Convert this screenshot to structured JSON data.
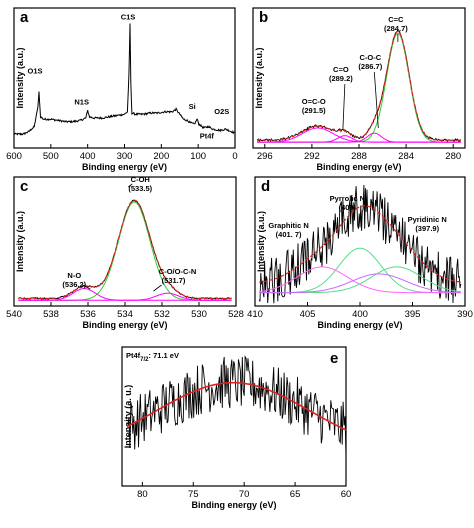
{
  "chart_data": [
    {
      "id": "a",
      "type": "line",
      "panel_label": "a",
      "xlabel": "Binding energy (eV)",
      "ylabel": "Intensity (a.u.)",
      "xlim": [
        600,
        0
      ],
      "xticks": [
        "600",
        "500",
        "400",
        "300",
        "200",
        "100",
        "0"
      ],
      "tick_values": [
        600,
        500,
        400,
        300,
        200,
        100,
        0
      ],
      "annotations": [
        {
          "text": "C1S",
          "x": 285,
          "y": 0.97
        },
        {
          "text": "O1S",
          "x": 532,
          "y": 0.52
        },
        {
          "text": "N1S",
          "x": 400,
          "y": 0.27
        },
        {
          "text": "Si",
          "x": 100,
          "y": 0.2
        },
        {
          "text": "Pt4f",
          "x": 71,
          "y": 0.14
        },
        {
          "text": "O2S",
          "x": 25,
          "y": 0.16
        }
      ],
      "series": [
        {
          "values": [
            [
              600,
              0.08
            ],
            [
              575,
              0.08
            ],
            [
              560,
              0.1
            ],
            [
              545,
              0.14
            ],
            [
              535,
              0.3
            ],
            [
              532,
              0.42
            ],
            [
              528,
              0.22
            ],
            [
              520,
              0.2
            ],
            [
              500,
              0.2
            ],
            [
              480,
              0.19
            ],
            [
              460,
              0.18
            ],
            [
              440,
              0.18
            ],
            [
              420,
              0.19
            ],
            [
              405,
              0.21
            ],
            [
              400,
              0.27
            ],
            [
              395,
              0.22
            ],
            [
              385,
              0.21
            ],
            [
              360,
              0.21
            ],
            [
              340,
              0.22
            ],
            [
              320,
              0.23
            ],
            [
              300,
              0.24
            ],
            [
              292,
              0.26
            ],
            [
              288,
              0.55
            ],
            [
              285,
              0.97
            ],
            [
              283,
              0.5
            ],
            [
              280,
              0.25
            ],
            [
              270,
              0.24
            ],
            [
              250,
              0.24
            ],
            [
              230,
              0.25
            ],
            [
              210,
              0.25
            ],
            [
              190,
              0.26
            ],
            [
              170,
              0.26
            ],
            [
              160,
              0.28
            ],
            [
              150,
              0.24
            ],
            [
              140,
              0.2
            ],
            [
              130,
              0.19
            ],
            [
              120,
              0.17
            ],
            [
              110,
              0.16
            ],
            [
              103,
              0.2
            ],
            [
              98,
              0.16
            ],
            [
              85,
              0.13
            ],
            [
              72,
              0.14
            ],
            [
              60,
              0.12
            ],
            [
              40,
              0.11
            ],
            [
              25,
              0.12
            ],
            [
              10,
              0.1
            ],
            [
              0,
              0.09
            ]
          ]
        }
      ]
    },
    {
      "id": "b",
      "type": "line",
      "panel_label": "b",
      "xlabel": "Binding energy (eV)",
      "ylabel": "Intensity (a.u.)",
      "xlim": [
        297,
        279
      ],
      "xticks": [
        "296",
        "292",
        "288",
        "284",
        "280"
      ],
      "tick_values": [
        296,
        292,
        288,
        284,
        280
      ],
      "annotations": [
        {
          "text": "C=C",
          "x": 284.7
        },
        {
          "text": "(284.7)",
          "x": 284.7
        },
        {
          "text": "C-O-C",
          "x": 286.7
        },
        {
          "text": "(286.7)",
          "x": 286.7
        },
        {
          "text": "C=O",
          "x": 289.2
        },
        {
          "text": "(289.2)",
          "x": 289.2
        },
        {
          "text": "O=C-O",
          "x": 291.5
        },
        {
          "text": "(291.5)",
          "x": 291.5
        }
      ],
      "components": [
        {
          "center": 284.7,
          "height": 0.85,
          "sigma": 0.95,
          "color": "#33cc33"
        },
        {
          "center": 286.7,
          "height": 0.07,
          "sigma": 0.6,
          "color": "#ff00ff"
        },
        {
          "center": 289.2,
          "height": 0.05,
          "sigma": 0.6,
          "color": "#ff00ff"
        },
        {
          "center": 291.5,
          "height": 0.11,
          "sigma": 1.3,
          "color": "#ff00ff"
        }
      ],
      "colors": {
        "data": "#000000",
        "fit": "#e02020",
        "component": "#33cc33",
        "minor": "#ff00ff"
      }
    },
    {
      "id": "c",
      "type": "line",
      "panel_label": "c",
      "xlabel": "Binding energy (eV)",
      "ylabel": "Intensity (a.u.)",
      "xlim": [
        540,
        528
      ],
      "xticks": [
        "540",
        "538",
        "536",
        "534",
        "532",
        "530",
        "528"
      ],
      "tick_values": [
        540,
        538,
        536,
        534,
        532,
        530,
        528
      ],
      "annotations": [
        {
          "text": "C-OH",
          "x": 533.5
        },
        {
          "text": "(533.5)",
          "x": 533.5
        },
        {
          "text": "N-O",
          "x": 536.2
        },
        {
          "text": "(536.2)",
          "x": 536.2
        },
        {
          "text": "C-O/O-C-N",
          "x": 531.7
        },
        {
          "text": "(531.7)",
          "x": 531.7
        }
      ],
      "components": [
        {
          "center": 533.5,
          "height": 0.84,
          "sigma": 0.85,
          "color": "#33cc33"
        },
        {
          "center": 536.2,
          "height": 0.1,
          "sigma": 0.6,
          "color": "#ff00ff"
        },
        {
          "center": 531.7,
          "height": 0.06,
          "sigma": 0.6,
          "color": "#ff00ff"
        }
      ],
      "colors": {
        "data": "#000000",
        "fit": "#e02020",
        "component": "#33cc33",
        "minor": "#ff00ff"
      }
    },
    {
      "id": "d",
      "type": "line",
      "panel_label": "d",
      "xlabel": "Binding energy (eV)",
      "ylabel": "Intensity (a.u.)",
      "xlim": [
        410,
        390
      ],
      "xticks": [
        "410",
        "405",
        "400",
        "395",
        "390"
      ],
      "tick_values": [
        410,
        405,
        400,
        395,
        390
      ],
      "annotations": [
        {
          "text": "Pyrrolic N",
          "x": 400
        },
        {
          "text": "(400)",
          "x": 400
        },
        {
          "text": "Graphitic N",
          "x": 401.7
        },
        {
          "text": "(401. 7)",
          "x": 401.7
        },
        {
          "text": "Pyridinic N",
          "x": 397.9
        },
        {
          "text": "(397.9)",
          "x": 397.9
        }
      ],
      "components": [
        {
          "center": 400.0,
          "height": 0.38,
          "sigma": 2.0,
          "color": "#55dd88"
        },
        {
          "center": 403.6,
          "height": 0.22,
          "sigma": 2.4,
          "color": "#ff66ff"
        },
        {
          "center": 396.5,
          "height": 0.22,
          "sigma": 2.4,
          "color": "#55dd88"
        },
        {
          "center": 398.2,
          "height": 0.16,
          "sigma": 2.6,
          "color": "#cc66ff"
        }
      ],
      "colors": {
        "data": "#000000",
        "fit": "#e02020"
      }
    },
    {
      "id": "e",
      "type": "line",
      "panel_label": "e",
      "xlabel": "Binding energy (eV)",
      "ylabel": "Intensity (a. u.)",
      "xlim": [
        82,
        60
      ],
      "xticks": [
        "80",
        "75",
        "70",
        "65",
        "60"
      ],
      "tick_values": [
        80,
        75,
        70,
        65,
        60
      ],
      "annotation": {
        "base": "Pt4f",
        "sub": "7/2",
        "suffix": ": 71.1 eV"
      },
      "fit": {
        "center": 71.1,
        "height": 0.55,
        "sigma": 7.5,
        "baseline": 0.22
      },
      "colors": {
        "data": "#000000",
        "fit": "#e02020"
      }
    }
  ]
}
